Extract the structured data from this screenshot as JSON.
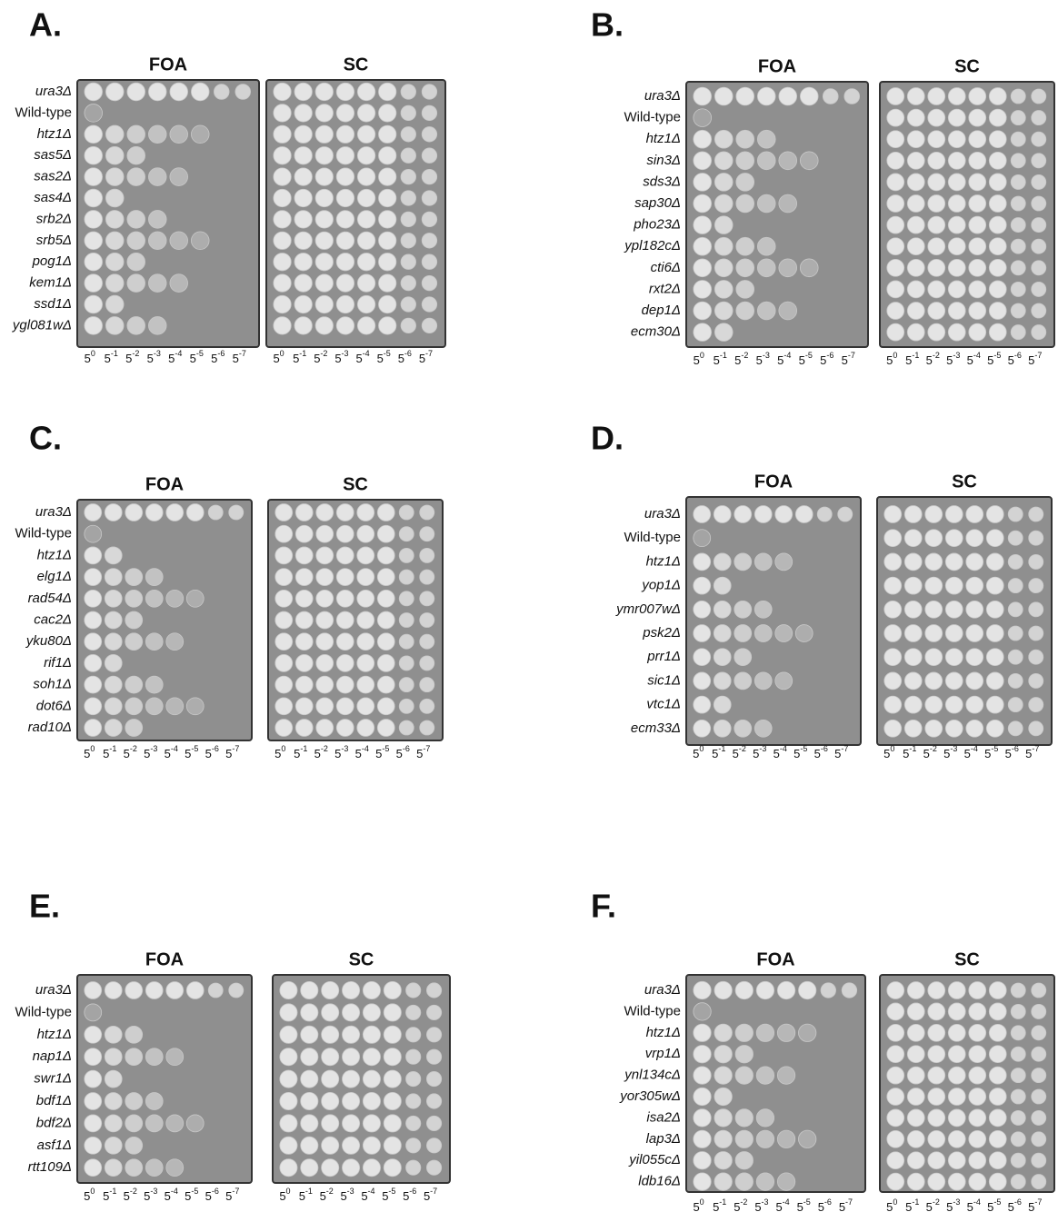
{
  "panels": [
    {
      "letter": "A.",
      "plates": [
        "FOA",
        "SC"
      ],
      "strains": [
        "ura3Δ",
        "Wild-type",
        "htz1Δ",
        "sas5Δ",
        "sas2Δ",
        "sas4Δ",
        "srb2Δ",
        "srb5Δ",
        "pog1Δ",
        "kem1Δ",
        "ssd1Δ",
        "ygl081wΔ"
      ],
      "dilution_base": "5",
      "dilution_exponents": [
        "0",
        "-1",
        "-2",
        "-3",
        "-4",
        "-5",
        "-6",
        "-7"
      ]
    },
    {
      "letter": "B.",
      "plates": [
        "FOA",
        "SC"
      ],
      "strains": [
        "ura3Δ",
        "Wild-type",
        "htz1Δ",
        "sin3Δ",
        "sds3Δ",
        "sap30Δ",
        "pho23Δ",
        "ypl182cΔ",
        "cti6Δ",
        "rxt2Δ",
        "dep1Δ",
        "ecm30Δ"
      ],
      "dilution_base": "5",
      "dilution_exponents": [
        "0",
        "-1",
        "-2",
        "-3",
        "-4",
        "-5",
        "-6",
        "-7"
      ]
    },
    {
      "letter": "C.",
      "plates": [
        "FOA",
        "SC"
      ],
      "strains": [
        "ura3Δ",
        "Wild-type",
        "htz1Δ",
        "elg1Δ",
        "rad54Δ",
        "cac2Δ",
        "yku80Δ",
        "rif1Δ",
        "soh1Δ",
        "dot6Δ",
        "rad10Δ"
      ],
      "dilution_base": "5",
      "dilution_exponents": [
        "0",
        "-1",
        "-2",
        "-3",
        "-4",
        "-5",
        "-6",
        "-7"
      ]
    },
    {
      "letter": "D.",
      "plates": [
        "FOA",
        "SC"
      ],
      "strains": [
        "ura3Δ",
        "Wild-type",
        "htz1Δ",
        "yop1Δ",
        "ymr007wΔ",
        "psk2Δ",
        "prr1Δ",
        "sic1Δ",
        "vtc1Δ",
        "ecm33Δ"
      ],
      "dilution_base": "5",
      "dilution_exponents": [
        "0",
        "-1",
        "-2",
        "-3",
        "-4",
        "-5",
        "-6",
        "-7"
      ]
    },
    {
      "letter": "E.",
      "plates": [
        "FOA",
        "SC"
      ],
      "strains": [
        "ura3Δ",
        "Wild-type",
        "htz1Δ",
        "nap1Δ",
        "swr1Δ",
        "bdf1Δ",
        "bdf2Δ",
        "asf1Δ",
        "rtt109Δ"
      ],
      "dilution_base": "5",
      "dilution_exponents": [
        "0",
        "-1",
        "-2",
        "-3",
        "-4",
        "-5",
        "-6",
        "-7"
      ]
    },
    {
      "letter": "F.",
      "plates": [
        "FOA",
        "SC"
      ],
      "strains": [
        "ura3Δ",
        "Wild-type",
        "htz1Δ",
        "vrp1Δ",
        "ynl134cΔ",
        "yor305wΔ",
        "isa2Δ",
        "lap3Δ",
        "yil055cΔ",
        "ldb16Δ"
      ],
      "dilution_base": "5",
      "dilution_exponents": [
        "0",
        "-1",
        "-2",
        "-3",
        "-4",
        "-5",
        "-6",
        "-7"
      ]
    }
  ]
}
